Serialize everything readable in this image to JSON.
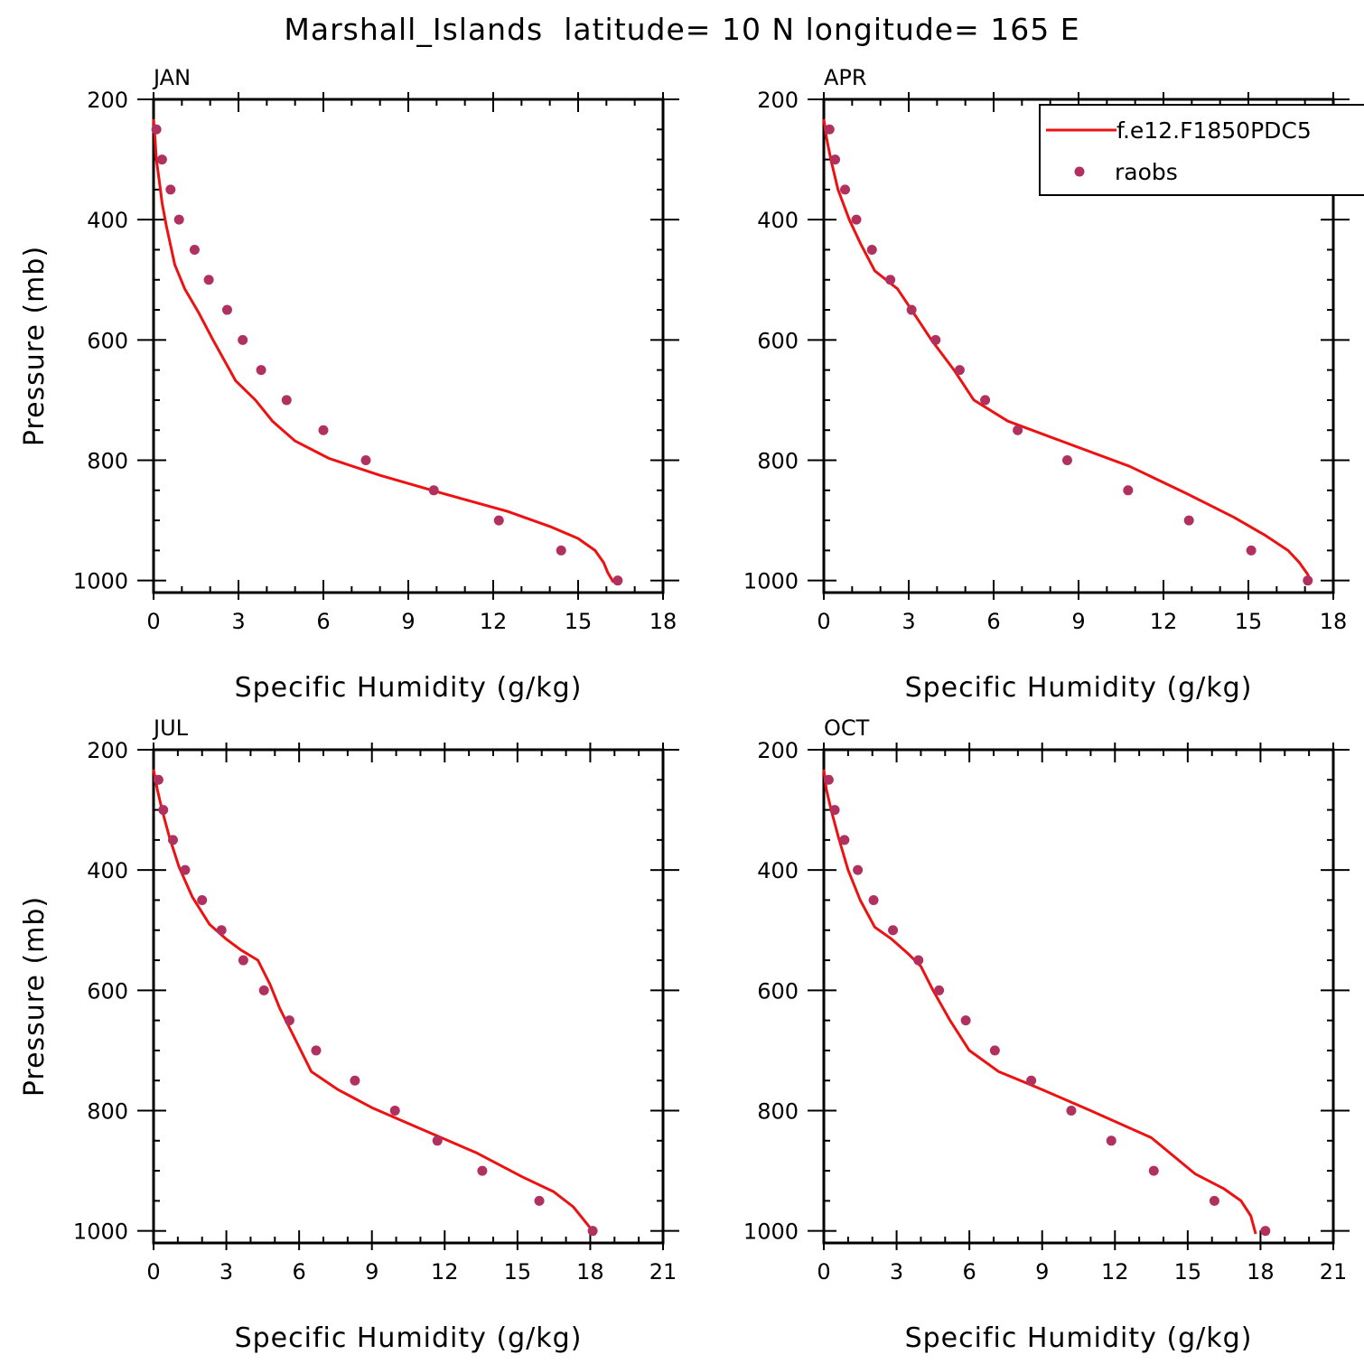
{
  "page": {
    "title": "Marshall_Islands  latitude= 10 N longitude= 165 E"
  },
  "legend": {
    "model_label": "f.e12.F1850PDC5",
    "obs_label": "raobs",
    "model_color": "#ee1111",
    "obs_color": "#b03060"
  },
  "chart_data": [
    {
      "type": "line",
      "panel": "JAN",
      "title": "JAN",
      "xlabel": "Specific Humidity (g/kg)",
      "ylabel": "Pressure (mb)",
      "xlim": [
        0,
        18
      ],
      "xticks": [
        "0",
        "3",
        "6",
        "9",
        "12",
        "15",
        "18"
      ],
      "ylim": [
        200,
        1000
      ],
      "yticks": [
        "200",
        "400",
        "600",
        "800",
        "1000"
      ],
      "y_inverted": true,
      "series": [
        {
          "name": "f.e12.F1850PDC5",
          "kind": "line",
          "x": [
            0.0,
            0.05,
            0.1,
            0.2,
            0.3,
            0.45,
            0.75,
            1.1,
            1.6,
            2.1,
            2.9,
            3.6,
            4.2,
            5.0,
            6.2,
            8.0,
            10.2,
            12.5,
            14.0,
            15.0,
            15.6,
            15.9,
            16.05,
            16.25
          ],
          "y": [
            233,
            265,
            300,
            335,
            372,
            410,
            475,
            515,
            555,
            600,
            668,
            700,
            735,
            768,
            797,
            825,
            855,
            885,
            910,
            930,
            950,
            970,
            987,
            1003
          ]
        },
        {
          "name": "raobs",
          "kind": "scatter",
          "x": [
            0.1,
            0.3,
            0.6,
            0.9,
            1.45,
            1.95,
            2.6,
            3.15,
            3.8,
            4.7,
            6.0,
            7.5,
            9.9,
            12.2,
            14.4,
            16.4
          ],
          "y": [
            250,
            300,
            350,
            400,
            450,
            500,
            550,
            600,
            650,
            700,
            750,
            800,
            850,
            900,
            950,
            1000
          ]
        }
      ]
    },
    {
      "type": "line",
      "panel": "APR",
      "title": "APR",
      "xlabel": "Specific Humidity (g/kg)",
      "ylabel": "",
      "xlim": [
        0,
        18
      ],
      "xticks": [
        "0",
        "3",
        "6",
        "9",
        "12",
        "15",
        "18"
      ],
      "ylim": [
        200,
        1000
      ],
      "yticks": [
        "200",
        "400",
        "600",
        "800",
        "1000"
      ],
      "y_inverted": true,
      "series": [
        {
          "name": "f.e12.F1850PDC5",
          "kind": "line",
          "x": [
            0.0,
            0.1,
            0.25,
            0.5,
            0.9,
            1.3,
            1.8,
            2.6,
            3.1,
            3.8,
            4.6,
            5.3,
            6.5,
            8.5,
            10.8,
            12.8,
            14.5,
            15.6,
            16.4,
            16.8,
            17.1,
            17.2
          ],
          "y": [
            233,
            265,
            300,
            350,
            400,
            440,
            485,
            515,
            550,
            600,
            650,
            700,
            735,
            770,
            810,
            855,
            895,
            925,
            950,
            970,
            990,
            1003
          ]
        },
        {
          "name": "raobs",
          "kind": "scatter",
          "x": [
            0.2,
            0.4,
            0.75,
            1.15,
            1.7,
            2.35,
            3.1,
            3.95,
            4.8,
            5.7,
            6.85,
            8.6,
            10.75,
            12.9,
            15.1,
            17.1
          ],
          "y": [
            250,
            300,
            350,
            400,
            450,
            500,
            550,
            600,
            650,
            700,
            750,
            800,
            850,
            900,
            950,
            1000
          ]
        }
      ]
    },
    {
      "type": "line",
      "panel": "JUL",
      "title": "JUL",
      "xlabel": "Specific Humidity (g/kg)",
      "ylabel": "Pressure (mb)",
      "xlim": [
        0,
        21
      ],
      "xticks": [
        "0",
        "3",
        "6",
        "9",
        "12",
        "15",
        "18",
        "21"
      ],
      "ylim": [
        200,
        1000
      ],
      "yticks": [
        "200",
        "400",
        "600",
        "800",
        "1000"
      ],
      "y_inverted": true,
      "series": [
        {
          "name": "f.e12.F1850PDC5",
          "kind": "line",
          "x": [
            0.0,
            0.15,
            0.35,
            0.65,
            1.05,
            1.6,
            2.3,
            3.0,
            3.6,
            4.3,
            4.8,
            5.2,
            5.7,
            6.5,
            7.6,
            9.0,
            11.0,
            13.3,
            15.2,
            16.5,
            17.3,
            17.8,
            18.1
          ],
          "y": [
            233,
            265,
            300,
            345,
            395,
            445,
            490,
            515,
            533,
            550,
            590,
            630,
            670,
            735,
            765,
            795,
            830,
            870,
            910,
            935,
            960,
            985,
            1000
          ]
        },
        {
          "name": "raobs",
          "kind": "scatter",
          "x": [
            0.2,
            0.4,
            0.8,
            1.3,
            2.0,
            2.8,
            3.7,
            4.55,
            5.6,
            6.7,
            8.3,
            9.95,
            11.7,
            13.55,
            15.9,
            18.1
          ],
          "y": [
            250,
            300,
            350,
            400,
            450,
            500,
            550,
            600,
            650,
            700,
            750,
            800,
            850,
            900,
            950,
            1000
          ]
        }
      ]
    },
    {
      "type": "line",
      "panel": "OCT",
      "title": "OCT",
      "xlabel": "Specific Humidity (g/kg)",
      "ylabel": "",
      "xlim": [
        0,
        21
      ],
      "xticks": [
        "0",
        "3",
        "6",
        "9",
        "12",
        "15",
        "18",
        "21"
      ],
      "ylim": [
        200,
        1000
      ],
      "yticks": [
        "200",
        "400",
        "600",
        "800",
        "1000"
      ],
      "y_inverted": true,
      "series": [
        {
          "name": "f.e12.F1850PDC5",
          "kind": "line",
          "x": [
            0.0,
            0.1,
            0.3,
            0.6,
            1.0,
            1.5,
            2.1,
            2.8,
            3.5,
            4.0,
            4.5,
            5.2,
            6.0,
            7.2,
            9.0,
            11.0,
            13.5,
            15.3,
            16.5,
            17.2,
            17.6,
            17.8
          ],
          "y": [
            233,
            265,
            300,
            345,
            400,
            450,
            495,
            515,
            540,
            560,
            600,
            650,
            700,
            735,
            765,
            800,
            845,
            905,
            930,
            950,
            975,
            1005
          ]
        },
        {
          "name": "raobs",
          "kind": "scatter",
          "x": [
            0.2,
            0.45,
            0.85,
            1.4,
            2.05,
            2.85,
            3.9,
            4.75,
            5.85,
            7.05,
            8.55,
            10.2,
            11.85,
            13.6,
            16.1,
            18.2
          ],
          "y": [
            250,
            300,
            350,
            400,
            450,
            500,
            550,
            600,
            650,
            700,
            750,
            800,
            850,
            900,
            950,
            1000
          ]
        }
      ]
    }
  ]
}
